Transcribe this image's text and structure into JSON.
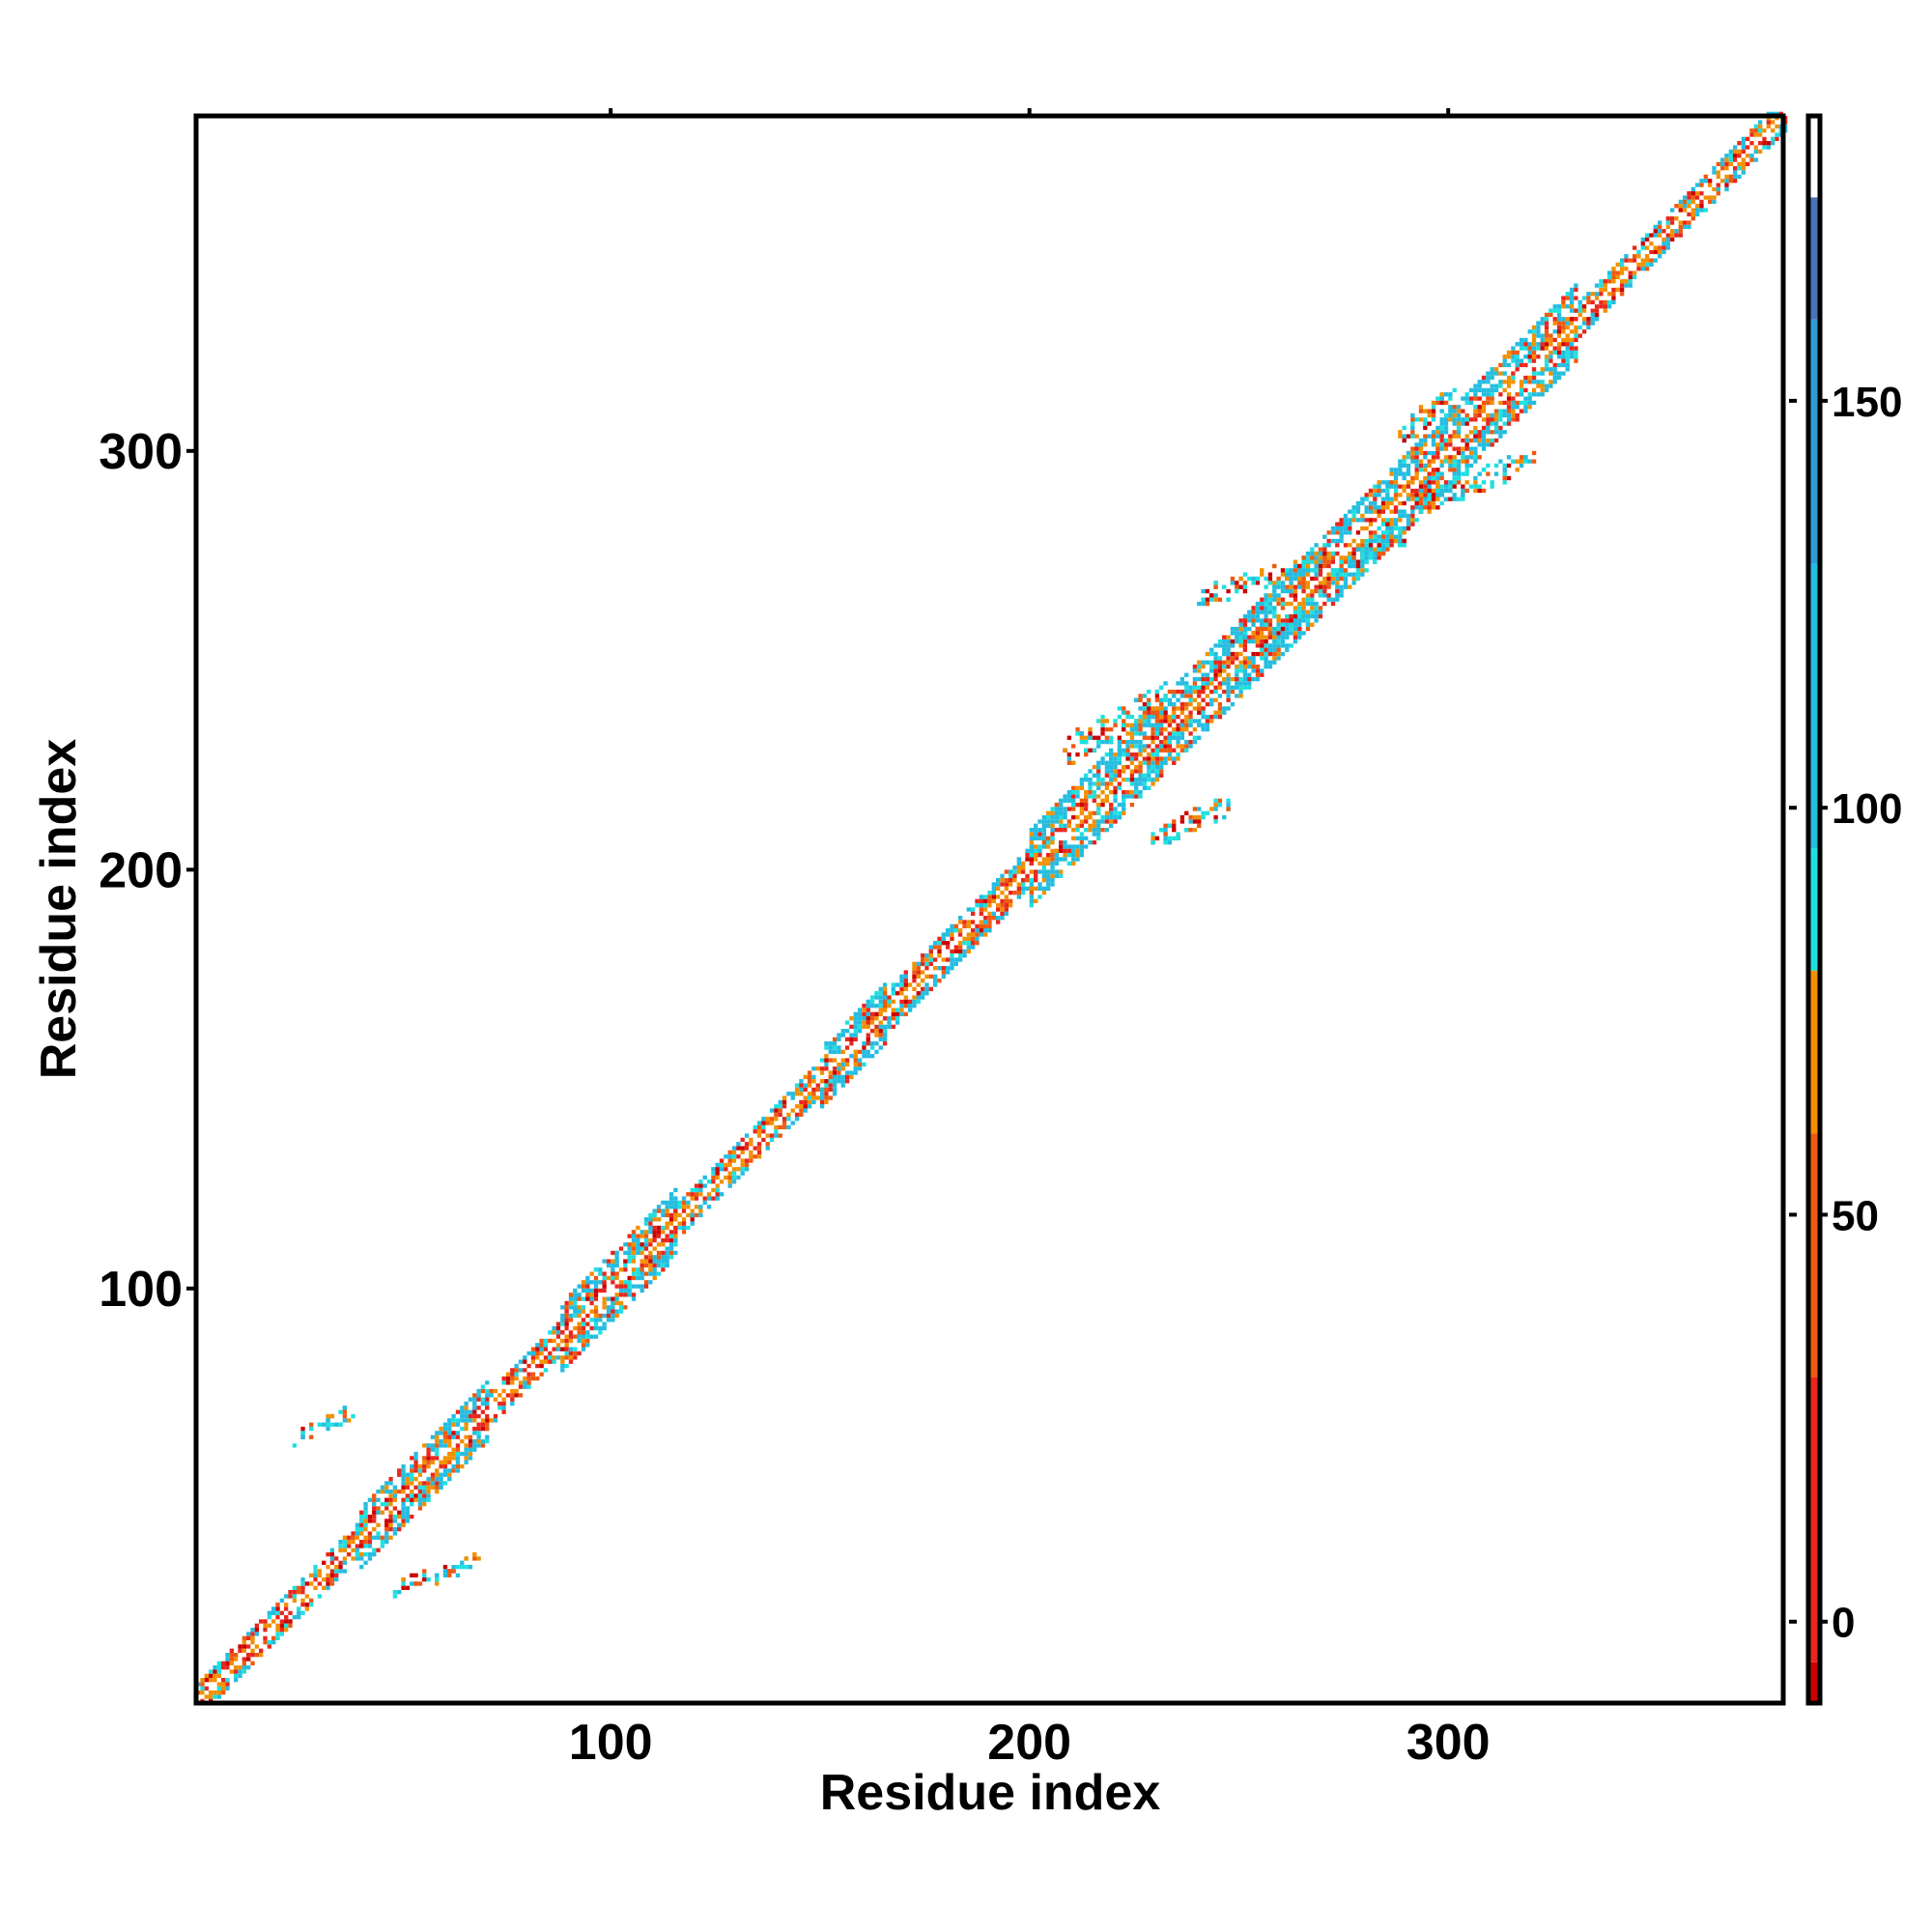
{
  "chart_data": {
    "type": "heatmap",
    "title": "",
    "xlabel": "Residue index",
    "ylabel": "Residue index",
    "xlim": [
      1,
      380
    ],
    "ylim": [
      1,
      380
    ],
    "x_ticks": [
      100,
      200,
      300
    ],
    "y_ticks": [
      100,
      200,
      300
    ],
    "colorbar": {
      "range": [
        -10,
        185
      ],
      "ticks": [
        0,
        50,
        100,
        150
      ],
      "colors": [
        {
          "from": -10,
          "to": -5,
          "color": "#cc0000"
        },
        {
          "from": -5,
          "to": 30,
          "color": "#e8271d"
        },
        {
          "from": 30,
          "to": 60,
          "color": "#ee5a10"
        },
        {
          "from": 60,
          "to": 80,
          "color": "#f29000"
        },
        {
          "from": 80,
          "to": 95,
          "color": "#1fe0e0"
        },
        {
          "from": 95,
          "to": 130,
          "color": "#24bde0"
        },
        {
          "from": 130,
          "to": 160,
          "color": "#2f9bd4"
        },
        {
          "from": 160,
          "to": 175,
          "color": "#4a74b8"
        },
        {
          "from": 175,
          "to": 185,
          "color": "#ffffff"
        }
      ]
    },
    "diagonal_segments": [
      {
        "from": 1,
        "to": 40,
        "width": 4
      },
      {
        "from": 40,
        "to": 70,
        "width": 7
      },
      {
        "from": 70,
        "to": 88,
        "width": 4
      },
      {
        "from": 88,
        "to": 115,
        "width": 8
      },
      {
        "from": 115,
        "to": 150,
        "width": 4
      },
      {
        "from": 150,
        "to": 165,
        "width": 7
      },
      {
        "from": 165,
        "to": 200,
        "width": 5
      },
      {
        "from": 200,
        "to": 330,
        "width": 9
      },
      {
        "from": 330,
        "to": 380,
        "width": 4
      }
    ],
    "off_diagonal_contacts": [
      {
        "x": [
          24,
          38
        ],
        "y": [
          62,
          72
        ],
        "note": ""
      },
      {
        "x": [
          48,
          68
        ],
        "y": [
          26,
          36
        ],
        "note": ""
      },
      {
        "x": [
          208,
          232
        ],
        "y": [
          224,
          244
        ],
        "note": ""
      },
      {
        "x": [
          228,
          248
        ],
        "y": [
          204,
          218
        ],
        "note": ""
      },
      {
        "x": [
          248,
          266
        ],
        "y": [
          252,
          262
        ],
        "note": ""
      },
      {
        "x": [
          240,
          270
        ],
        "y": [
          262,
          276
        ],
        "note": ""
      },
      {
        "x": [
          272,
          290
        ],
        "y": [
          268,
          282
        ],
        "note": ""
      },
      {
        "x": [
          288,
          302
        ],
        "y": [
          300,
          316
        ],
        "note": ""
      },
      {
        "x": [
          292,
          320
        ],
        "y": [
          284,
          300
        ],
        "note": ""
      }
    ]
  }
}
